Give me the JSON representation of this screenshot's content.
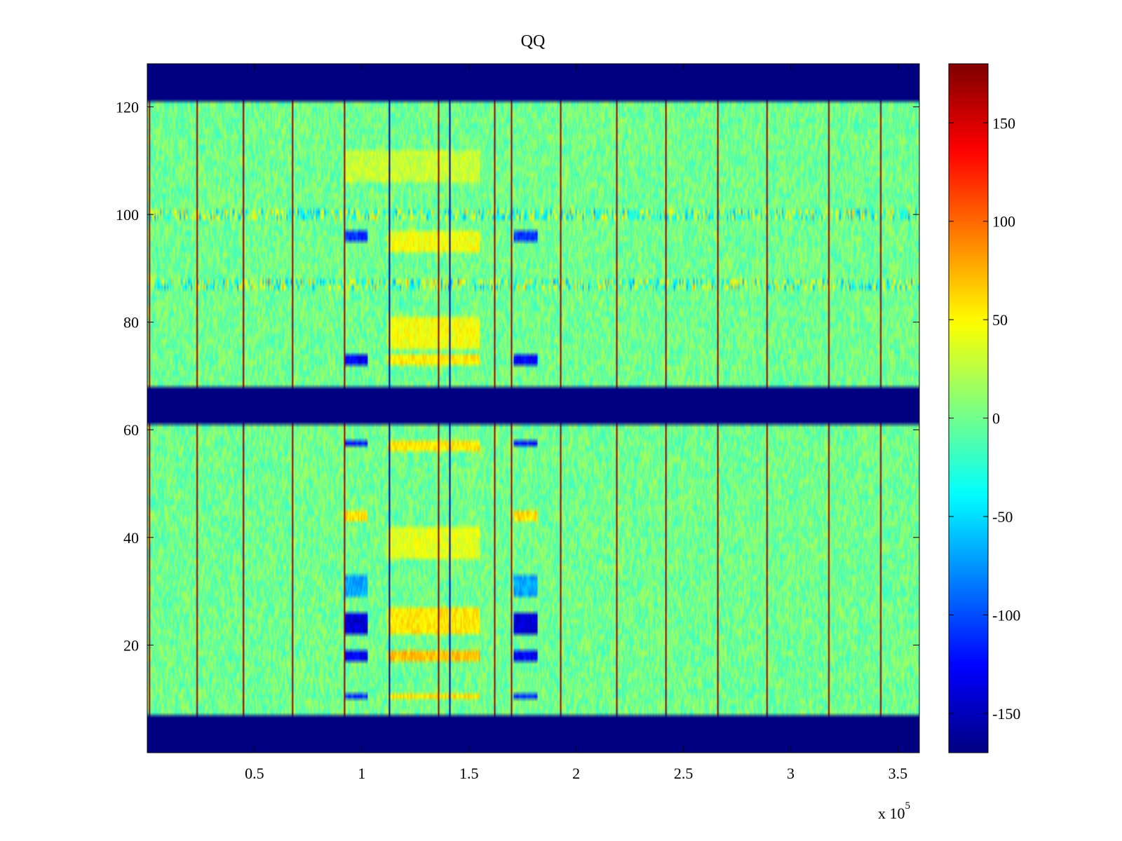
{
  "chart_data": {
    "type": "heatmap",
    "title": "QQ",
    "xlabel": "",
    "ylabel": "",
    "colormap": "jet",
    "xlim": [
      0,
      360000
    ],
    "ylim": [
      0,
      128
    ],
    "x_exponent_label": {
      "base": "x 10",
      "exponent": "5"
    },
    "x_ticks": [
      {
        "value": 50000,
        "label": "0.5"
      },
      {
        "value": 100000,
        "label": "1"
      },
      {
        "value": 150000,
        "label": "1.5"
      },
      {
        "value": 200000,
        "label": "2"
      },
      {
        "value": 250000,
        "label": "2.5"
      },
      {
        "value": 300000,
        "label": "3"
      },
      {
        "value": 350000,
        "label": "3.5"
      }
    ],
    "y_ticks": [
      {
        "value": 20,
        "label": "20"
      },
      {
        "value": 40,
        "label": "40"
      },
      {
        "value": 60,
        "label": "60"
      },
      {
        "value": 80,
        "label": "80"
      },
      {
        "value": 100,
        "label": "100"
      },
      {
        "value": 120,
        "label": "120"
      }
    ],
    "colorbar": {
      "range": [
        -170,
        180
      ],
      "ticks": [
        {
          "value": 150,
          "label": "150"
        },
        {
          "value": 100,
          "label": "100"
        },
        {
          "value": 50,
          "label": "50"
        },
        {
          "value": 0,
          "label": "0"
        },
        {
          "value": -50,
          "label": "-50"
        },
        {
          "value": -100,
          "label": "-100"
        },
        {
          "value": -150,
          "label": "-150"
        }
      ]
    },
    "background_value": 0,
    "noise_amplitude": 22,
    "blank_row_bands": [
      {
        "y": [
          0,
          7
        ],
        "value": -170
      },
      {
        "y": [
          61,
          68
        ],
        "value": -170
      },
      {
        "y": [
          121,
          128
        ],
        "value": -170
      }
    ],
    "vertical_stripes": [
      {
        "x": 1000,
        "value": 170
      },
      {
        "x": 23000,
        "value": 170
      },
      {
        "x": 45000,
        "value": 170
      },
      {
        "x": 68000,
        "value": 170
      },
      {
        "x": 92000,
        "value": 170
      },
      {
        "x": 113000,
        "value": -160
      },
      {
        "x": 136000,
        "value": 175
      },
      {
        "x": 141000,
        "value": -150
      },
      {
        "x": 162000,
        "value": 170
      },
      {
        "x": 170000,
        "value": 170
      },
      {
        "x": 193000,
        "value": 170
      },
      {
        "x": 219000,
        "value": 170
      },
      {
        "x": 242000,
        "value": 170
      },
      {
        "x": 266000,
        "value": 170
      },
      {
        "x": 289000,
        "value": 170
      },
      {
        "x": 318000,
        "value": 170
      },
      {
        "x": 342000,
        "value": 170
      }
    ],
    "regions": [
      {
        "x": [
          92000,
          103000
        ],
        "y": [
          22,
          26
        ],
        "value": -140
      },
      {
        "x": [
          92000,
          103000
        ],
        "y": [
          17,
          19
        ],
        "value": -130
      },
      {
        "x": [
          92000,
          103000
        ],
        "y": [
          10,
          11
        ],
        "value": -110
      },
      {
        "x": [
          92000,
          103000
        ],
        "y": [
          29,
          33
        ],
        "value": -70
      },
      {
        "x": [
          92000,
          103000
        ],
        "y": [
          57,
          58
        ],
        "value": -120
      },
      {
        "x": [
          92000,
          103000
        ],
        "y": [
          72,
          74
        ],
        "value": -130
      },
      {
        "x": [
          92000,
          103000
        ],
        "y": [
          95,
          97
        ],
        "value": -110
      },
      {
        "x": [
          92000,
          103000
        ],
        "y": [
          43,
          45
        ],
        "value": 60
      },
      {
        "x": [
          171000,
          182000
        ],
        "y": [
          22,
          26
        ],
        "value": -140
      },
      {
        "x": [
          171000,
          182000
        ],
        "y": [
          17,
          19
        ],
        "value": -130
      },
      {
        "x": [
          171000,
          182000
        ],
        "y": [
          10,
          11
        ],
        "value": -110
      },
      {
        "x": [
          171000,
          182000
        ],
        "y": [
          29,
          33
        ],
        "value": -70
      },
      {
        "x": [
          171000,
          182000
        ],
        "y": [
          57,
          58
        ],
        "value": -120
      },
      {
        "x": [
          171000,
          182000
        ],
        "y": [
          72,
          74
        ],
        "value": -130
      },
      {
        "x": [
          171000,
          182000
        ],
        "y": [
          95,
          97
        ],
        "value": -110
      },
      {
        "x": [
          171000,
          182000
        ],
        "y": [
          43,
          45
        ],
        "value": 60
      },
      {
        "x": [
          112000,
          155000
        ],
        "y": [
          22,
          27
        ],
        "value": 55
      },
      {
        "x": [
          112000,
          155000
        ],
        "y": [
          17,
          19
        ],
        "value": 70
      },
      {
        "x": [
          112000,
          155000
        ],
        "y": [
          10,
          11
        ],
        "value": 60
      },
      {
        "x": [
          112000,
          155000
        ],
        "y": [
          36,
          42
        ],
        "value": 40
      },
      {
        "x": [
          112000,
          155000
        ],
        "y": [
          56,
          58
        ],
        "value": 55
      },
      {
        "x": [
          112000,
          155000
        ],
        "y": [
          72,
          74
        ],
        "value": 55
      },
      {
        "x": [
          112000,
          155000
        ],
        "y": [
          75,
          81
        ],
        "value": 45
      },
      {
        "x": [
          112000,
          155000
        ],
        "y": [
          93,
          97
        ],
        "value": 45
      },
      {
        "x": [
          92000,
          155000
        ],
        "y": [
          106,
          112
        ],
        "value": 30
      }
    ],
    "row_bands": [
      {
        "y": [
          99,
          101
        ],
        "amplitude": 60
      },
      {
        "y": [
          86,
          88
        ],
        "amplitude": 60
      }
    ]
  }
}
